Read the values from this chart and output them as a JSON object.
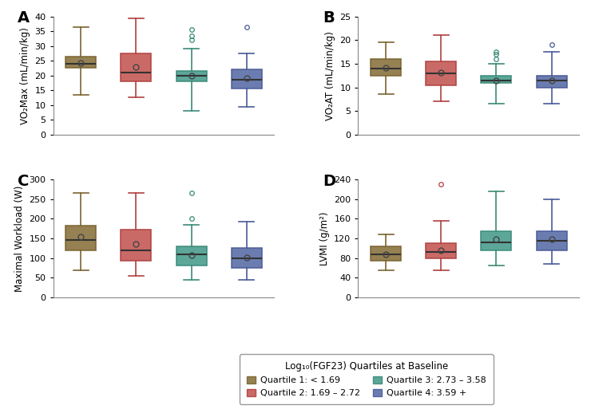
{
  "panels": {
    "A": {
      "title": "A",
      "ylabel": "VO₂Max (mL/min/kg)",
      "ylim": [
        0,
        40
      ],
      "yticks": [
        0,
        5,
        10,
        15,
        20,
        25,
        30,
        35,
        40
      ],
      "boxes": [
        {
          "q1": 22.5,
          "median": 24.0,
          "q3": 26.5,
          "whislo": 13.5,
          "whishi": 36.5,
          "mean": 24.2,
          "fliers": []
        },
        {
          "q1": 18.0,
          "median": 21.0,
          "q3": 27.5,
          "whislo": 12.5,
          "whishi": 39.5,
          "mean": 23.0,
          "fliers": []
        },
        {
          "q1": 18.0,
          "median": 20.0,
          "q3": 21.5,
          "whislo": 8.0,
          "whishi": 29.0,
          "mean": 20.0,
          "fliers": [
            32.0,
            33.5,
            35.5
          ]
        },
        {
          "q1": 15.5,
          "median": 18.5,
          "q3": 22.0,
          "whislo": 9.5,
          "whishi": 27.5,
          "mean": 19.2,
          "fliers": [
            36.5
          ]
        }
      ]
    },
    "B": {
      "title": "B",
      "ylabel": "VO₂AT (mL/min/kg)",
      "ylim": [
        0,
        25
      ],
      "yticks": [
        0,
        5,
        10,
        15,
        20,
        25
      ],
      "boxes": [
        {
          "q1": 12.5,
          "median": 14.0,
          "q3": 16.0,
          "whislo": 8.5,
          "whishi": 19.5,
          "mean": 14.2,
          "fliers": []
        },
        {
          "q1": 10.5,
          "median": 13.0,
          "q3": 15.5,
          "whislo": 7.0,
          "whishi": 21.0,
          "mean": 13.2,
          "fliers": []
        },
        {
          "q1": 11.0,
          "median": 11.5,
          "q3": 12.5,
          "whislo": 6.5,
          "whishi": 15.0,
          "mean": 11.5,
          "fliers": [
            16.0,
            17.0,
            17.5
          ]
        },
        {
          "q1": 10.0,
          "median": 11.5,
          "q3": 12.5,
          "whislo": 6.5,
          "whishi": 17.5,
          "mean": 11.5,
          "fliers": [
            19.0
          ]
        }
      ]
    },
    "C": {
      "title": "C",
      "ylabel": "Maximal Workload (W)",
      "ylim": [
        0,
        300
      ],
      "yticks": [
        0,
        50,
        100,
        150,
        200,
        250,
        300
      ],
      "boxes": [
        {
          "q1": 120.0,
          "median": 145.0,
          "q3": 183.0,
          "whislo": 68.0,
          "whishi": 265.0,
          "mean": 153.0,
          "fliers": []
        },
        {
          "q1": 93.0,
          "median": 120.0,
          "q3": 172.0,
          "whislo": 55.0,
          "whishi": 265.0,
          "mean": 135.0,
          "fliers": []
        },
        {
          "q1": 80.0,
          "median": 110.0,
          "q3": 130.0,
          "whislo": 45.0,
          "whishi": 185.0,
          "mean": 108.0,
          "fliers": [
            200.0,
            265.0
          ]
        },
        {
          "q1": 75.0,
          "median": 100.0,
          "q3": 125.0,
          "whislo": 45.0,
          "whishi": 192.0,
          "mean": 101.0,
          "fliers": []
        }
      ]
    },
    "D": {
      "title": "D",
      "ylabel": "LVMI (g/m²)",
      "ylim": [
        0,
        240
      ],
      "yticks": [
        0,
        40,
        80,
        120,
        160,
        200,
        240
      ],
      "boxes": [
        {
          "q1": 75.0,
          "median": 88.0,
          "q3": 103.0,
          "whislo": 55.0,
          "whishi": 128.0,
          "mean": 88.0,
          "fliers": []
        },
        {
          "q1": 80.0,
          "median": 93.0,
          "q3": 110.0,
          "whislo": 55.0,
          "whishi": 155.0,
          "mean": 95.0,
          "fliers": [
            230.0
          ]
        },
        {
          "q1": 95.0,
          "median": 112.0,
          "q3": 135.0,
          "whislo": 65.0,
          "whishi": 215.0,
          "mean": 118.0,
          "fliers": []
        },
        {
          "q1": 95.0,
          "median": 115.0,
          "q3": 135.0,
          "whislo": 68.0,
          "whishi": 200.0,
          "mean": 118.0,
          "fliers": []
        }
      ]
    }
  },
  "colors": [
    "#8B7340",
    "#C45A55",
    "#4A9E8E",
    "#5B6FA8"
  ],
  "edge_colors": [
    "#7A6330",
    "#B04040",
    "#3A8A78",
    "#4A5A98"
  ],
  "legend": {
    "title": "Log₁₀(FGF23) Quartiles at Baseline",
    "labels": [
      "Quartile 1: < 1.69",
      "Quartile 2: 1.69 – 2.72",
      "Quartile 3: 2.73 – 3.58",
      "Quartile 4: 3.59 +"
    ]
  },
  "box_width": 0.55,
  "positions": [
    1,
    2,
    3,
    4
  ]
}
